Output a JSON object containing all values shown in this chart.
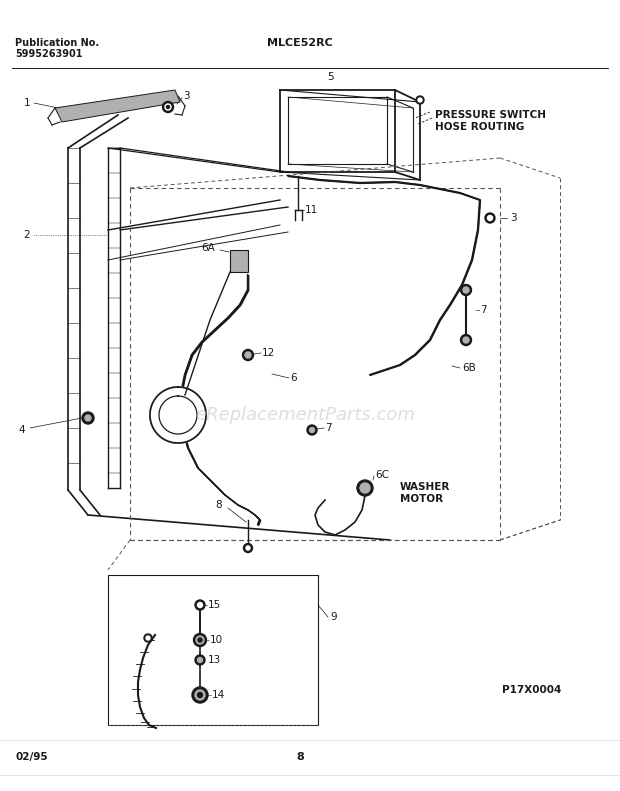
{
  "pub_no_label": "Publication No.",
  "pub_no": "5995263901",
  "model": "MLCE52RC",
  "page_num": "8",
  "date_code": "02/95",
  "diagram_code": "P17X0004",
  "watermark": "eReplacementParts.com",
  "pressure_switch_label": "PRESSURE SWITCH\nHOSE ROUTING",
  "washer_motor_label": "WASHER\nMOTOR",
  "bg_color": "#ffffff",
  "line_color": "#1a1a1a",
  "dashed_color": "#555555",
  "watermark_color": "#c8c8c8",
  "gray_fill": "#b0b0b0",
  "dark_fill": "#333333"
}
